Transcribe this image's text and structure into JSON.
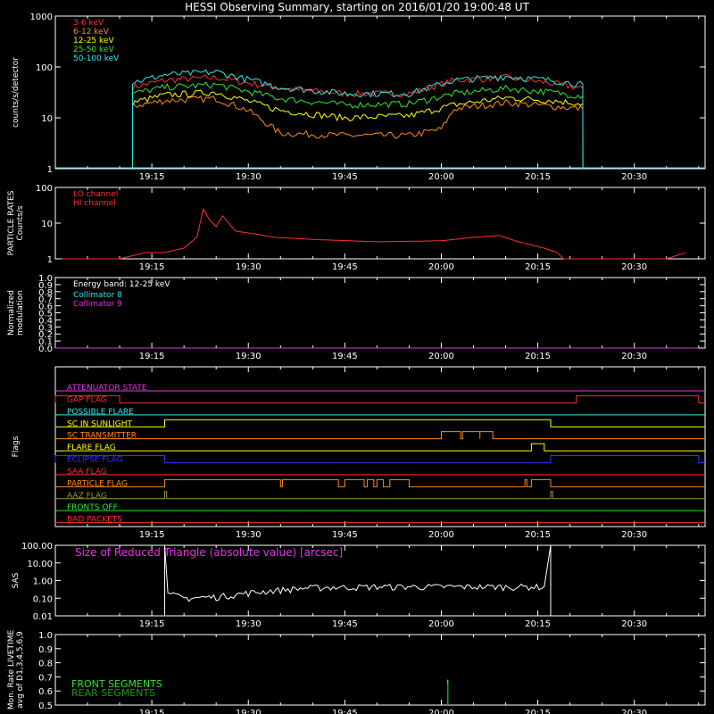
{
  "title": "HESSI Observing Summary, starting on 2016/01/20 19:00:48 UT",
  "time_ticks": [
    "19:15",
    "19:30",
    "19:45",
    "20:00",
    "20:15",
    "20:30"
  ],
  "chart_data": [
    {
      "type": "line",
      "name": "count-rates",
      "ylabel": "counts/s/detector",
      "yscale": "log",
      "ylim": [
        1,
        1000
      ],
      "ytick_labels": [
        "1000",
        "100",
        "10",
        "1"
      ],
      "legend_placement": "top-left",
      "data_window": [
        "19:12",
        "20:22"
      ],
      "series": [
        {
          "name": "3-6 keV",
          "color": "#ff3030",
          "x": [
            "19:12",
            "19:17",
            "19:25",
            "19:35",
            "19:45",
            "19:55",
            "20:02",
            "20:10",
            "20:17",
            "20:22"
          ],
          "y": [
            40,
            55,
            62,
            38,
            30,
            30,
            55,
            62,
            48,
            38
          ]
        },
        {
          "name": "6-12 keV",
          "color": "#ff8c1a",
          "x": [
            "19:12",
            "19:17",
            "19:25",
            "19:30",
            "19:35",
            "19:45",
            "19:55",
            "20:00",
            "20:02",
            "20:10",
            "20:17",
            "20:22"
          ],
          "y": [
            17,
            22,
            24,
            14,
            5,
            4.5,
            4.5,
            6,
            15,
            20,
            17,
            15
          ]
        },
        {
          "name": "12-25 keV",
          "color": "#ffff00",
          "x": [
            "19:12",
            "19:17",
            "19:25",
            "19:35",
            "19:45",
            "19:55",
            "20:02",
            "20:10",
            "20:17",
            "20:22"
          ],
          "y": [
            20,
            28,
            32,
            14,
            10,
            11,
            18,
            25,
            22,
            19
          ]
        },
        {
          "name": "25-50 keV",
          "color": "#33e633",
          "x": [
            "19:12",
            "19:17",
            "19:25",
            "19:35",
            "19:45",
            "19:55",
            "20:02",
            "20:10",
            "20:17",
            "20:22"
          ],
          "y": [
            30,
            40,
            45,
            24,
            18,
            19,
            30,
            38,
            32,
            27
          ]
        },
        {
          "name": "50-100 keV",
          "color": "#33e6e6",
          "x": [
            "19:12",
            "19:17",
            "19:25",
            "19:35",
            "19:45",
            "19:55",
            "20:02",
            "20:10",
            "20:17",
            "20:22"
          ],
          "y": [
            50,
            70,
            80,
            40,
            30,
            30,
            55,
            65,
            55,
            45
          ]
        }
      ]
    },
    {
      "type": "line",
      "name": "particle-rates",
      "ylabel": "PARTICLE RATES\nCounts/s",
      "yscale": "log",
      "ylim": [
        1,
        100
      ],
      "ytick_labels": [
        "100",
        "10",
        "1"
      ],
      "legend_placement": "top-left",
      "series": [
        {
          "name": "LO channel",
          "color": "#ff3030",
          "x": [],
          "y": []
        },
        {
          "name": "HI channel",
          "color": "#ff3030",
          "x": [
            "19:01",
            "19:10",
            "19:14",
            "19:17",
            "19:20",
            "19:22",
            "19:23",
            "19:24",
            "19:25",
            "19:26",
            "19:28",
            "19:31",
            "19:34",
            "19:40",
            "19:50",
            "20:00",
            "20:05",
            "20:09",
            "20:12",
            "20:16",
            "20:18",
            "20:19",
            "20:25",
            "20:35",
            "20:38"
          ],
          "y": [
            1,
            1,
            1.5,
            1.5,
            2,
            4,
            25,
            12,
            8,
            16,
            6,
            5,
            4,
            3.5,
            3,
            3.2,
            4,
            4.5,
            3,
            2,
            1.5,
            1,
            1,
            1,
            1.5
          ]
        }
      ]
    },
    {
      "type": "line",
      "name": "modulation",
      "ylabel": "Normalized\nmodulation",
      "ylim": [
        0,
        1
      ],
      "ytick_labels": [
        "1.0",
        "0.9",
        "0.8",
        "0.7",
        "0.6",
        "0.5",
        "0.4",
        "0.3",
        "0.2",
        "0.1",
        "0.0"
      ],
      "legend_placement": "top-left",
      "legend_title": "Energy band: 12-25 keV",
      "series": [
        {
          "name": "Collimator 8",
          "color": "#33e6e6",
          "x": [],
          "y": []
        },
        {
          "name": "Collimator 9",
          "color": "#e633e6",
          "x": [
            "19:00",
            "20:40"
          ],
          "y": [
            0,
            0
          ]
        }
      ]
    },
    {
      "type": "line",
      "name": "flags",
      "ylabel": "Flags",
      "flags": [
        {
          "label": "ATTENUATOR STATE",
          "color": "#e633e6",
          "on": []
        },
        {
          "label": "GAP FLAG",
          "color": "#ff3030",
          "on": [
            [
              "19:00",
              "19:10"
            ],
            [
              "20:21",
              "20:40"
            ]
          ]
        },
        {
          "label": "POSSIBLE FLARE",
          "color": "#33e6e6",
          "on": []
        },
        {
          "label": "SC IN SUNLIGHT",
          "color": "#ffff00",
          "on": [
            [
              "19:17",
              "20:17"
            ]
          ]
        },
        {
          "label": "SC TRANSMITTER",
          "color": "#ff8c1a",
          "on": [
            [
              "20:00",
              "20:03"
            ],
            [
              "20:03.3",
              "20:06"
            ],
            [
              "20:06",
              "20:08"
            ]
          ]
        },
        {
          "label": "FLARE FLAG",
          "color": "#ffff00",
          "on": [
            [
              "20:14",
              "20:16"
            ]
          ]
        },
        {
          "label": "ECLIPSE FLAG",
          "color": "#3333ff",
          "on": [
            [
              "19:00",
              "19:17"
            ],
            [
              "20:17",
              "20:40"
            ]
          ]
        },
        {
          "label": "SAA FLAG",
          "color": "#ff3030",
          "on": []
        },
        {
          "label": "PARTICLE FLAG",
          "color": "#ff8c1a",
          "on": [
            [
              "19:17",
              "19:35"
            ],
            [
              "19:35.3",
              "19:44"
            ],
            [
              "19:45",
              "19:48"
            ],
            [
              "19:48.5",
              "19:49.5"
            ],
            [
              "19:50",
              "19:51"
            ],
            [
              "19:52",
              "19:55"
            ],
            [
              "20:13",
              "20:13.3"
            ],
            [
              "20:14",
              "20:17"
            ]
          ]
        },
        {
          "label": "AAZ FLAG",
          "color": "#999933",
          "on": [
            [
              "19:17",
              "19:17.3"
            ],
            [
              "20:17",
              "20:17.3"
            ]
          ]
        },
        {
          "label": "FRONTS OFF",
          "color": "#33e633",
          "on": []
        },
        {
          "label": "BAD PACKETS",
          "color": "#ff3030",
          "on": []
        }
      ]
    },
    {
      "type": "line",
      "name": "sas",
      "ylabel": "SAS",
      "yscale": "log",
      "ylim": [
        0.01,
        100
      ],
      "ytick_labels": [
        "100.00",
        "10.00",
        "1.00",
        "0.10",
        "0.01"
      ],
      "annotation": "Size of Reduced Triangle (absolute value) [arcsec]",
      "series": [
        {
          "name": "Size of Reduced Triangle (absolute value) [arcsec]",
          "color": "#ffffff",
          "x": [
            "19:17",
            "19:17.5",
            "19:20",
            "19:25",
            "19:30",
            "19:35",
            "19:40",
            "19:50",
            "20:00",
            "20:10",
            "20:16",
            "20:17"
          ],
          "y": [
            100,
            0.2,
            0.1,
            0.12,
            0.2,
            0.3,
            0.4,
            0.45,
            0.45,
            0.45,
            0.45,
            100
          ]
        }
      ]
    },
    {
      "type": "line",
      "name": "livetime",
      "ylabel": "Mon. Rate LIVETIME\navg of D1,3,4,5,6,9",
      "ylim": [
        0.5,
        1.0
      ],
      "ytick_labels": [
        "1.0",
        "0.9",
        "0.8",
        "0.7",
        "0.6",
        "0.5"
      ],
      "legend_placement": "bottom-left",
      "series": [
        {
          "name": "FRONT SEGMENTS",
          "color": "#33e633",
          "x": [
            "20:01"
          ],
          "y": [
            0.68
          ]
        },
        {
          "name": "REAR SEGMENTS",
          "color": "#1a991a",
          "x": [
            "20:01"
          ],
          "y": [
            0.65
          ]
        }
      ]
    }
  ]
}
